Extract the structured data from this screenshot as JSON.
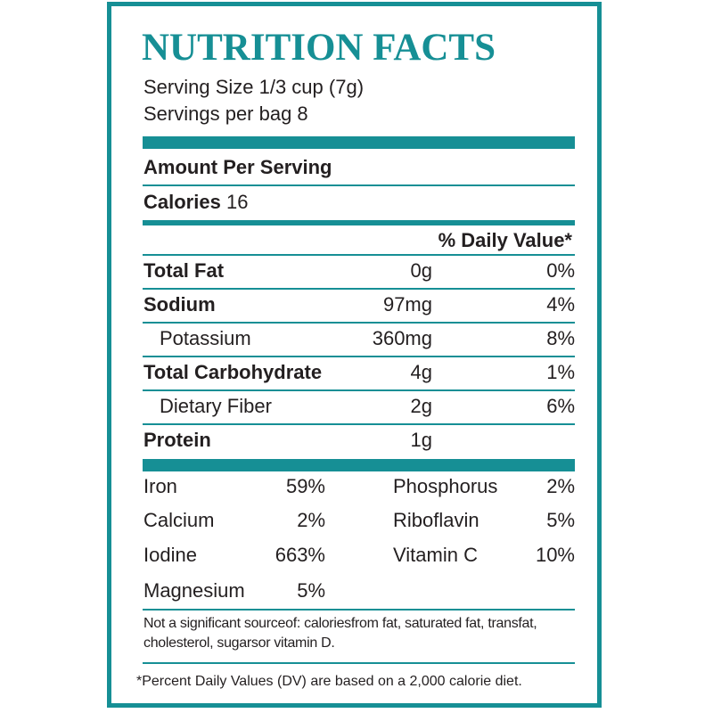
{
  "title": "NUTRITION FACTS",
  "serving_size": "Serving Size 1/3 cup (7g)",
  "servings_per": "Servings per bag 8",
  "amount_per_serving": "Amount Per Serving",
  "calories_label": "Calories",
  "calories_value": "16",
  "daily_value_header": "% Daily Value*",
  "nutrients": [
    {
      "name": "Total Fat",
      "amount": "0g",
      "dv": "0%"
    },
    {
      "name": "Sodium",
      "amount": "97mg",
      "dv": "4%"
    },
    {
      "name": "Potassium",
      "amount": "360mg",
      "dv": "8%"
    },
    {
      "name": "Total Carbohydrate",
      "amount": "4g",
      "dv": "1%"
    },
    {
      "name": "Dietary Fiber",
      "amount": "2g",
      "dv": "6%"
    },
    {
      "name": "Protein",
      "amount": "1g",
      "dv": ""
    }
  ],
  "vitamins_left": [
    {
      "name": "Iron",
      "dv": "59%"
    },
    {
      "name": "Calcium",
      "dv": "2%"
    },
    {
      "name": "Iodine",
      "dv": "663%"
    },
    {
      "name": "Magnesium",
      "dv": "5%"
    }
  ],
  "vitamins_right": [
    {
      "name": "Phosphorus",
      "dv": "2%"
    },
    {
      "name": "Riboflavin",
      "dv": "5%"
    },
    {
      "name": "Vitamin C",
      "dv": "10%"
    }
  ],
  "note": "Not a significant sourceof: caloriesfrom fat, saturated fat, transfat, cholesterol, sugarsor vitamin  D.",
  "footnote": "*Percent Daily Values (DV) are based on a 2,000 calorie diet.",
  "colors": {
    "accent": "#168f95",
    "text": "#231f20"
  }
}
